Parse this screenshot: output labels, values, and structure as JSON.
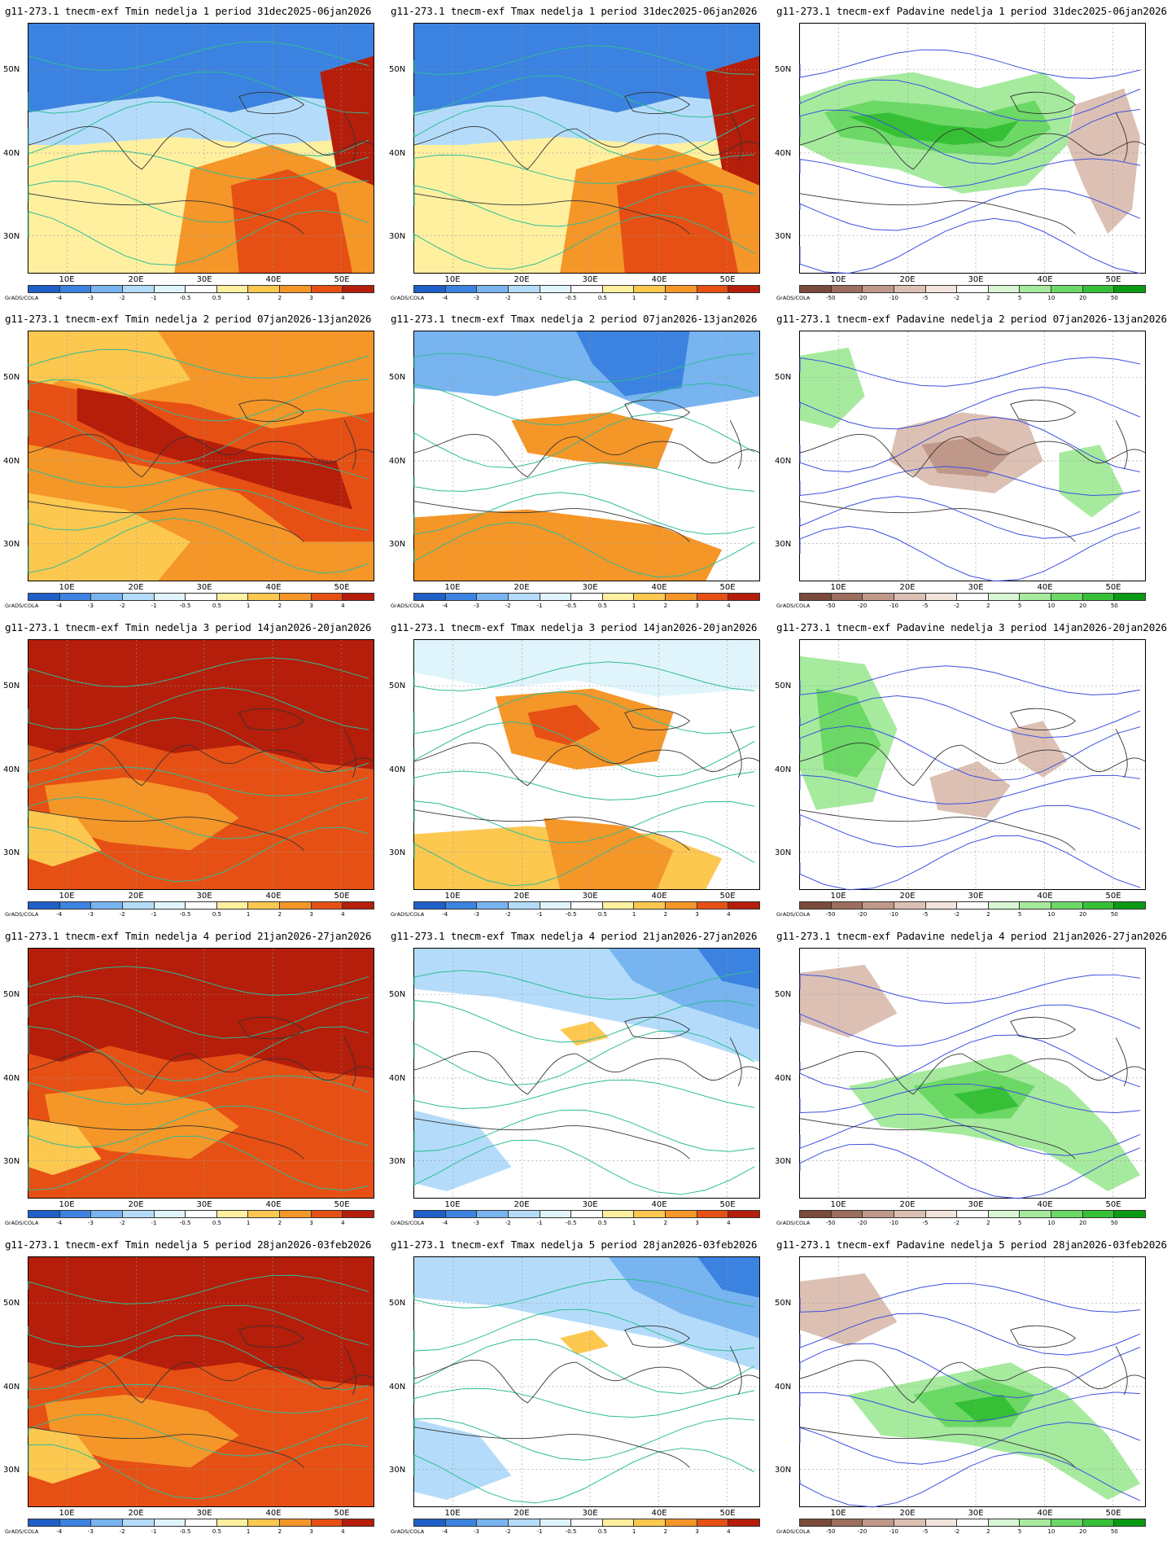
{
  "grads_label": "GrADS/COLA",
  "lat_labels": [
    "50N",
    "40N",
    "30N"
  ],
  "lon_labels": [
    "10E",
    "20E",
    "30E",
    "40E",
    "50E"
  ],
  "temp_scale": {
    "ticks": [
      "-4",
      "-3",
      "-2",
      "-1",
      "-0.5",
      "0.5",
      "1",
      "2",
      "3",
      "4"
    ],
    "colors": [
      "#1e5fc8",
      "#3c82e0",
      "#78b4f0",
      "#b4dcfa",
      "#e0f4fc",
      "#ffffff",
      "#fff0a0",
      "#fcc850",
      "#f59628",
      "#e65014",
      "#b41e0a"
    ]
  },
  "precip_scale": {
    "ticks": [
      "-50",
      "-20",
      "-10",
      "-5",
      "-2",
      "2",
      "5",
      "10",
      "20",
      "50"
    ],
    "colors": [
      "#7a4a3a",
      "#9c6e5e",
      "#c0988a",
      "#dcc0b4",
      "#f2e4dc",
      "#ffffff",
      "#d8f6d4",
      "#a6ea9e",
      "#6cd866",
      "#36c036",
      "#0a9a14"
    ]
  },
  "panels": [
    {
      "title": "g11-273.1 tnecm-exf Tmin nedelja 1 period 31dec2025-06jan2026",
      "kind": "tmin",
      "anomaly": "cold-north-warm-south"
    },
    {
      "title": "g11-273.1 tnecm-exf Tmax nedelja 1 period 31dec2025-06jan2026",
      "kind": "tmax",
      "anomaly": "cold-north-warm-south"
    },
    {
      "title": "g11-273.1 tnecm-exf Padavine nedelja 1 period 31dec2025-06jan2026",
      "kind": "precip",
      "anomaly": "wet"
    },
    {
      "title": "g11-273.1 tnecm-exf Tmin nedelja 2 period 07jan2026-13jan2026",
      "kind": "tmin",
      "anomaly": "warm"
    },
    {
      "title": "g11-273.1 tnecm-exf Tmax nedelja 2 period 07jan2026-13jan2026",
      "kind": "tmax",
      "anomaly": "cold-north-mild-south"
    },
    {
      "title": "g11-273.1 tnecm-exf Padavine nedelja 2 period 07jan2026-13jan2026",
      "kind": "precip",
      "anomaly": "dry-center"
    },
    {
      "title": "g11-273.1 tnecm-exf Tmin nedelja 3 period 14jan2026-20jan2026",
      "kind": "tmin",
      "anomaly": "very-warm"
    },
    {
      "title": "g11-273.1 tnecm-exf Tmax nedelja 3 period 14jan2026-20jan2026",
      "kind": "tmax",
      "anomaly": "mild"
    },
    {
      "title": "g11-273.1 tnecm-exf Padavine nedelja 3 period 14jan2026-20jan2026",
      "kind": "precip",
      "anomaly": "wet-west"
    },
    {
      "title": "g11-273.1 tnecm-exf Tmin nedelja 4 period 21jan2026-27jan2026",
      "kind": "tmin",
      "anomaly": "very-warm"
    },
    {
      "title": "g11-273.1 tnecm-exf Tmax nedelja 4 period 21jan2026-27jan2026",
      "kind": "tmax",
      "anomaly": "cool"
    },
    {
      "title": "g11-273.1 tnecm-exf Padavine nedelja 4 period 21jan2026-27jan2026",
      "kind": "precip",
      "anomaly": "wet-east"
    },
    {
      "title": "g11-273.1 tnecm-exf Tmin nedelja 5 period 28jan2026-03feb2026",
      "kind": "tmin",
      "anomaly": "very-warm"
    },
    {
      "title": "g11-273.1 tnecm-exf Tmax nedelja 5 period 28jan2026-03feb2026",
      "kind": "tmax",
      "anomaly": "cool"
    },
    {
      "title": "g11-273.1 tnecm-exf Padavine nedelja 5 period 28jan2026-03feb2026",
      "kind": "precip",
      "anomaly": "wet-east"
    }
  ]
}
